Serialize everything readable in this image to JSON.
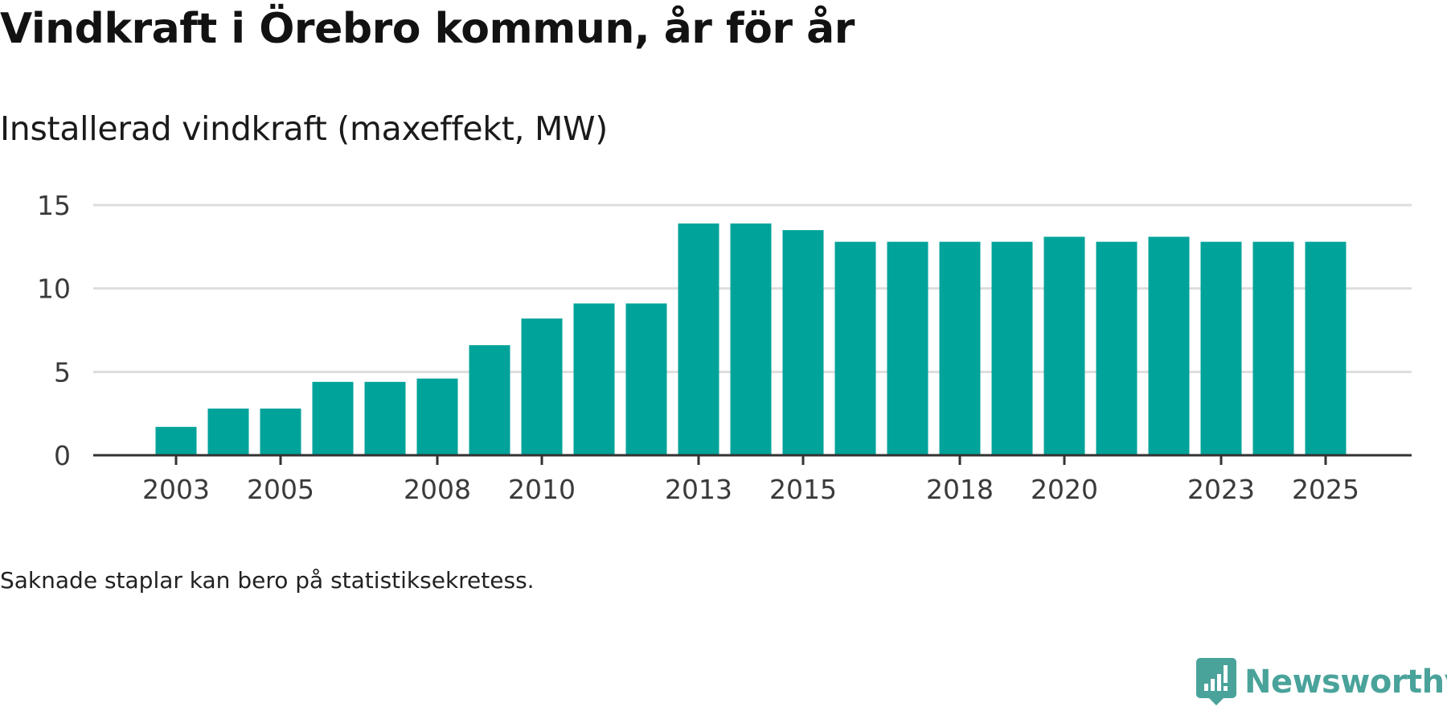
{
  "header": {
    "title": "Vindkraft i Örebro kommun, år för år",
    "subtitle": "Installerad vindkraft (maxeffekt, MW)"
  },
  "footnote": "Saknade staplar kan bero på statistiksekretess.",
  "brand": {
    "name": "Newsworthy",
    "icon": "newsworthy-logo-icon",
    "color": "#4aa39b"
  },
  "colors": {
    "bar": "#00a39a",
    "gridline": "#dddddd",
    "axis": "#333333"
  },
  "chart_data": {
    "type": "bar",
    "title": "Vindkraft i Örebro kommun, år för år",
    "subtitle": "Installerad vindkraft (maxeffekt, MW)",
    "xlabel": "",
    "ylabel": "Installerad vindkraft (maxeffekt, MW)",
    "categories": [
      "2003",
      "2004",
      "2005",
      "2006",
      "2007",
      "2008",
      "2009",
      "2010",
      "2011",
      "2012",
      "2013",
      "2014",
      "2015",
      "2016",
      "2017",
      "2018",
      "2019",
      "2020",
      "2021",
      "2022",
      "2023",
      "2024",
      "2025"
    ],
    "values": [
      1.7,
      2.8,
      2.8,
      4.4,
      4.4,
      4.6,
      6.6,
      8.2,
      9.1,
      9.1,
      13.9,
      13.9,
      13.5,
      12.8,
      12.8,
      12.8,
      12.8,
      13.1,
      12.8,
      13.1,
      12.8,
      12.8,
      12.8
    ],
    "x_tick_labels": [
      "2003",
      "2005",
      "2008",
      "2010",
      "2013",
      "2015",
      "2018",
      "2020",
      "2023",
      "2025"
    ],
    "y_ticks": [
      0,
      5,
      10,
      15
    ],
    "ylim": [
      0,
      15
    ],
    "grid": true,
    "legend": "none"
  }
}
